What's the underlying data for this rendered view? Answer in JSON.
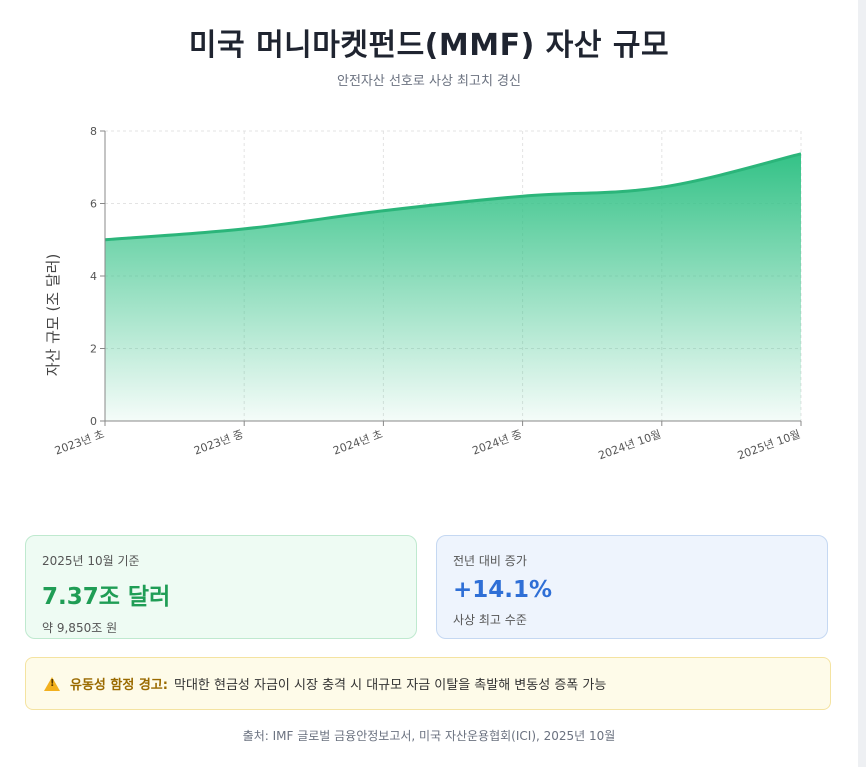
{
  "header": {
    "title": "미국 머니마켓펀드(MMF) 자산 규모",
    "subtitle": "안전자산 선호로 사상 최고치 경신"
  },
  "chart_data": {
    "type": "area",
    "categories": [
      "2023년 초",
      "2023년 중",
      "2024년 초",
      "2024년 중",
      "2024년 10월",
      "2025년 10월"
    ],
    "values": [
      5.0,
      5.3,
      5.8,
      6.2,
      6.45,
      7.37
    ],
    "ylabel": "자산 규모 (조 달러)",
    "ylim": [
      0,
      8
    ],
    "yticks": [
      0,
      2,
      4,
      6,
      8
    ],
    "grid": true,
    "colors": {
      "line": "#2bb57a",
      "fill_top": "#34c287",
      "fill_bottom": "#ffffff"
    }
  },
  "stats": {
    "current": {
      "label": "2025년 10월 기준",
      "value": "7.37조 달러",
      "sub": "약 9,850조 원"
    },
    "growth": {
      "label": "전년 대비 증가",
      "value": "+14.1%",
      "sub": "사상 최고 수준"
    }
  },
  "warning": {
    "icon": "warning-icon",
    "title": "유동성 함정 경고:",
    "text": "막대한 현금성 자금이 시장 충격 시 대규모 자금 이탈을 촉발해 변동성 증폭 가능"
  },
  "source": "출처: IMF 글로벌 금융안정보고서, 미국 자산운용협회(ICI), 2025년 10월"
}
